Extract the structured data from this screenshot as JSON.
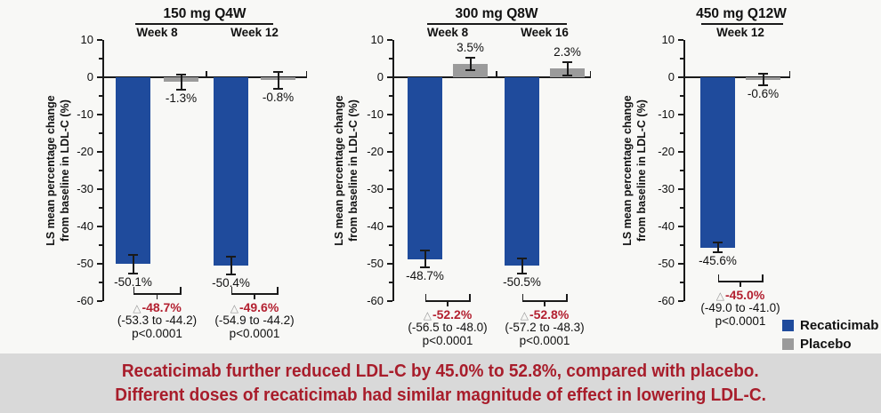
{
  "page": {
    "background": "#f8f8f6",
    "caption": {
      "band_color": "#d9d9d9",
      "text_color": "#a81d2b",
      "line1": "Recaticimab further reduced LDL-C by 45.0% to 52.8%, compared with placebo.",
      "line2": "Different doses of recaticimab had similar magnitude of effect in lowering LDL-C."
    },
    "legend": {
      "items": [
        {
          "label": "Recaticimab",
          "color": "#1f4b9c"
        },
        {
          "label": "Placebo",
          "color": "#9b9b9b"
        }
      ]
    }
  },
  "chart_data": {
    "type": "bar",
    "ylabel_line1": "LS mean percentage change",
    "ylabel_line2": "from baseline in LDL-C (%)",
    "ylim": [
      -60,
      10
    ],
    "yticks": [
      "10",
      "0",
      "-10",
      "-20",
      "-30",
      "-40",
      "-50",
      "-60"
    ],
    "grid": false,
    "legend_position": "bottom-right",
    "delta_symbol": "△",
    "delta_color": "#b32030",
    "series_colors": {
      "recaticimab": "#1f4b9c",
      "placebo": "#9b9b9b"
    },
    "panels": [
      {
        "title": "150 mg Q4W",
        "groups": [
          {
            "week": "Week 8",
            "recaticimab": {
              "value": -50.1,
              "label": "-50.1%",
              "err": 2.4
            },
            "placebo": {
              "value": -1.3,
              "label": "-1.3%",
              "err": 2.0
            },
            "comparison": {
              "delta": "-48.7%",
              "ci": "(-53.3 to -44.2)",
              "p": "p<0.0001"
            }
          },
          {
            "week": "Week 12",
            "recaticimab": {
              "value": -50.4,
              "label": "-50.4%",
              "err": 2.4
            },
            "placebo": {
              "value": -0.8,
              "label": "-0.8%",
              "err": 2.2
            },
            "comparison": {
              "delta": "-49.6%",
              "ci": "(-54.9 to -44.2)",
              "p": "p<0.0001"
            }
          }
        ]
      },
      {
        "title": "300 mg Q8W",
        "groups": [
          {
            "week": "Week 8",
            "recaticimab": {
              "value": -48.7,
              "label": "-48.7%",
              "err": 2.2
            },
            "placebo": {
              "value": 3.5,
              "label": "3.5%",
              "err": 1.7
            },
            "comparison": {
              "delta": "-52.2%",
              "ci": "(-56.5 to -48.0)",
              "p": "p<0.0001"
            }
          },
          {
            "week": "Week 16",
            "recaticimab": {
              "value": -50.5,
              "label": "-50.5%",
              "err": 2.0
            },
            "placebo": {
              "value": 2.3,
              "label": "2.3%",
              "err": 1.8
            },
            "comparison": {
              "delta": "-52.8%",
              "ci": "(-57.2 to -48.3)",
              "p": "p<0.0001"
            }
          }
        ]
      },
      {
        "title": "450 mg Q12W",
        "groups": [
          {
            "week": "Week 12",
            "recaticimab": {
              "value": -45.6,
              "label": "-45.6%",
              "err": 1.4
            },
            "placebo": {
              "value": -0.6,
              "label": "-0.6%",
              "err": 1.5
            },
            "comparison": {
              "delta": "-45.0%",
              "ci": "(-49.0 to -41.0)",
              "p": "p<0.0001"
            }
          }
        ]
      }
    ]
  }
}
